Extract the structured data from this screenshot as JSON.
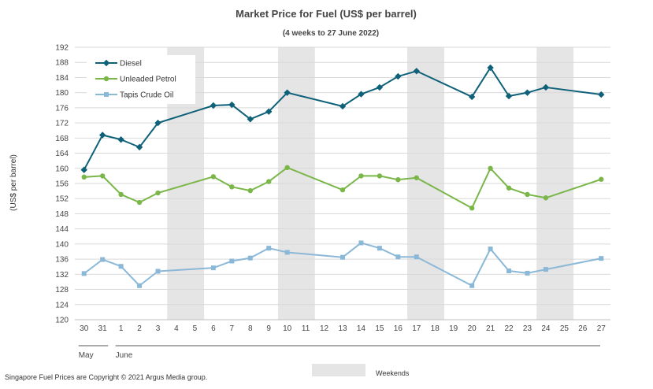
{
  "chart_data": {
    "type": "line",
    "title": "Market Price for Fuel (US$ per barrel)",
    "subtitle": "(4 weeks to 27 June 2022)",
    "ylabel": "(US$ per barrel)",
    "xlabel": "",
    "ylim": [
      120,
      192
    ],
    "ytick_step": 4,
    "yticks": [
      "120",
      "124",
      "128",
      "132",
      "136",
      "140",
      "144",
      "148",
      "152",
      "156",
      "160",
      "164",
      "168",
      "172",
      "176",
      "180",
      "184",
      "188",
      "192"
    ],
    "categories": [
      "30",
      "31",
      "1",
      "2",
      "3",
      "4",
      "5",
      "6",
      "7",
      "8",
      "9",
      "10",
      "11",
      "12",
      "13",
      "14",
      "15",
      "16",
      "17",
      "18",
      "19",
      "20",
      "21",
      "22",
      "23",
      "24",
      "25",
      "26",
      "27"
    ],
    "month_labels": [
      {
        "label": "May",
        "start": 0,
        "end": 1
      },
      {
        "label": "June",
        "start": 2,
        "end": 28
      }
    ],
    "weekend_spans": [
      [
        5,
        6
      ],
      [
        11,
        12
      ],
      [
        18,
        19
      ],
      [
        25,
        26
      ]
    ],
    "weekend_legend": "Weekends",
    "series": [
      {
        "name": "Diesel",
        "color": "#0e6178",
        "marker": "diamond",
        "values": [
          159.6,
          168.8,
          167.6,
          165.6,
          172.0,
          null,
          null,
          176.6,
          176.8,
          173.0,
          175.0,
          180.0,
          null,
          null,
          176.4,
          179.6,
          181.4,
          184.3,
          185.7,
          null,
          null,
          178.9,
          186.6,
          179.1,
          180.0,
          181.4,
          null,
          null,
          179.5
        ]
      },
      {
        "name": "Unleaded Petrol",
        "color": "#7ab648",
        "marker": "circle",
        "values": [
          157.7,
          158.0,
          153.1,
          151.0,
          153.5,
          null,
          null,
          157.8,
          155.1,
          154.1,
          156.5,
          160.2,
          null,
          null,
          154.3,
          158.0,
          158.0,
          157.0,
          157.5,
          null,
          null,
          149.5,
          160.0,
          154.8,
          153.1,
          152.2,
          null,
          null,
          157.1
        ]
      },
      {
        "name": "Tapis Crude Oil",
        "color": "#8cb8d8",
        "marker": "square",
        "values": [
          132.2,
          135.9,
          134.1,
          129.0,
          132.8,
          null,
          null,
          133.7,
          135.5,
          136.3,
          138.9,
          137.8,
          null,
          null,
          136.5,
          140.3,
          138.9,
          136.6,
          136.6,
          null,
          null,
          129.0,
          138.7,
          132.9,
          132.3,
          133.3,
          null,
          null,
          136.2
        ]
      }
    ]
  },
  "footer": {
    "copyright": "Singapore Fuel Prices are Copyright © 2021 Argus Media group."
  }
}
